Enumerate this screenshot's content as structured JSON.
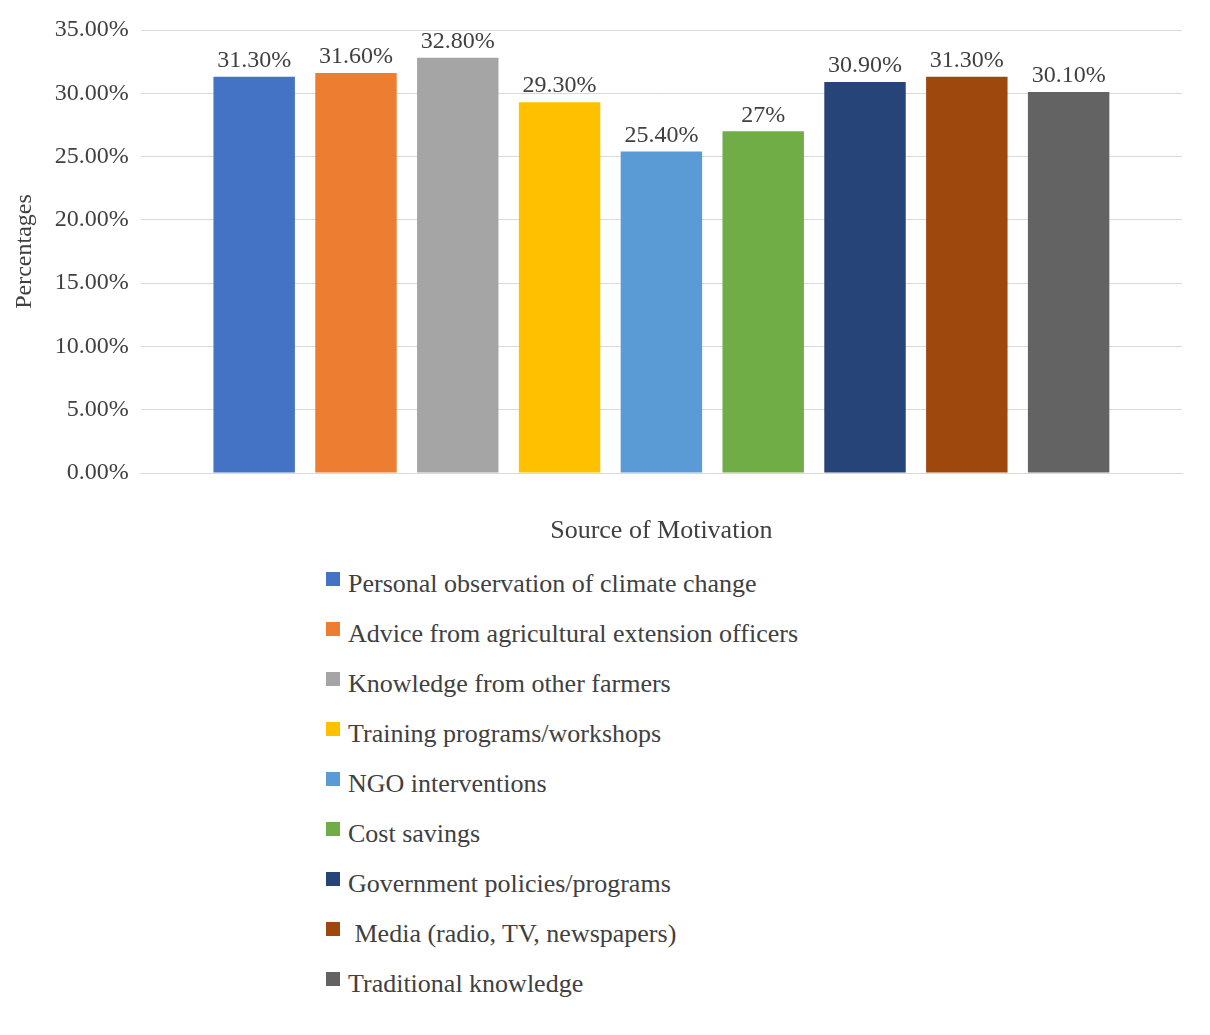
{
  "chart_data": {
    "type": "bar",
    "xlabel": "Source of Motivation",
    "ylabel": "Percentages",
    "categories": [
      null
    ],
    "series": [
      {
        "name": "Personal observation of climate change",
        "color": "#4472c4",
        "values": [
          31.3
        ],
        "value_labels": [
          "31.30%"
        ]
      },
      {
        "name": "Advice from agricultural extension officers",
        "color": "#ed7d31",
        "values": [
          31.6
        ],
        "value_labels": [
          "31.60%"
        ]
      },
      {
        "name": "Knowledge from other farmers",
        "color": "#a5a5a5",
        "values": [
          32.8
        ],
        "value_labels": [
          "32.80%"
        ]
      },
      {
        "name": "Training programs/workshops",
        "color": "#ffc000",
        "values": [
          29.3
        ],
        "value_labels": [
          "29.30%"
        ]
      },
      {
        "name": "NGO interventions",
        "color": "#5b9bd5",
        "values": [
          25.4
        ],
        "value_labels": [
          "25.40%"
        ]
      },
      {
        "name": "Cost savings",
        "color": "#70ad47",
        "values": [
          27
        ],
        "value_labels": [
          "27%"
        ]
      },
      {
        "name": "Government policies/programs",
        "color": "#264478",
        "values": [
          30.9
        ],
        "value_labels": [
          "30.90%"
        ]
      },
      {
        "name": " Media (radio, TV, newspapers)",
        "color": "#9e480e",
        "values": [
          31.3
        ],
        "value_labels": [
          "31.30%"
        ]
      },
      {
        "name": "Traditional knowledge",
        "color": "#636363",
        "values": [
          30.1
        ],
        "value_labels": [
          "30.10%"
        ]
      }
    ],
    "ylim": [
      0,
      35
    ],
    "yticks": [
      {
        "value": 0,
        "label": "0.00%"
      },
      {
        "value": 5,
        "label": "5.00%"
      },
      {
        "value": 10,
        "label": "10.00%"
      },
      {
        "value": 15,
        "label": "15.00%"
      },
      {
        "value": 20,
        "label": "20.00%"
      },
      {
        "value": 25,
        "label": "25.00%"
      },
      {
        "value": 30,
        "label": "30.00%"
      },
      {
        "value": 35,
        "label": "35.00%"
      }
    ],
    "grid": true,
    "legend": "bottom",
    "data_labels": true
  }
}
